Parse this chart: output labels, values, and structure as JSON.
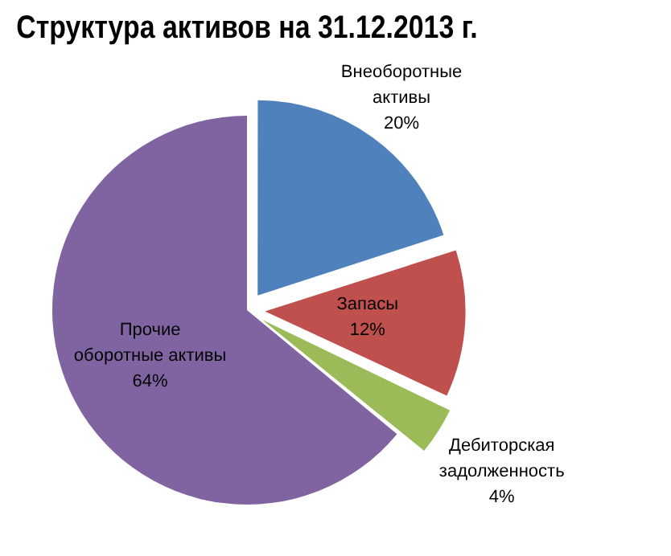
{
  "chart_data": {
    "type": "pie",
    "title": "Структура активов на 31.12.2013 г.",
    "categories": [
      "Внеоборотные активы",
      "Запасы",
      "Дебиторская задолженность",
      "Прочие оборотные активы"
    ],
    "values": [
      20,
      12,
      4,
      64
    ],
    "colors": [
      "#4f81bd",
      "#c0504d",
      "#9bbb59",
      "#8064a2"
    ],
    "value_labels": [
      "20%",
      "12%",
      "4%",
      "64%"
    ],
    "legend": false
  }
}
